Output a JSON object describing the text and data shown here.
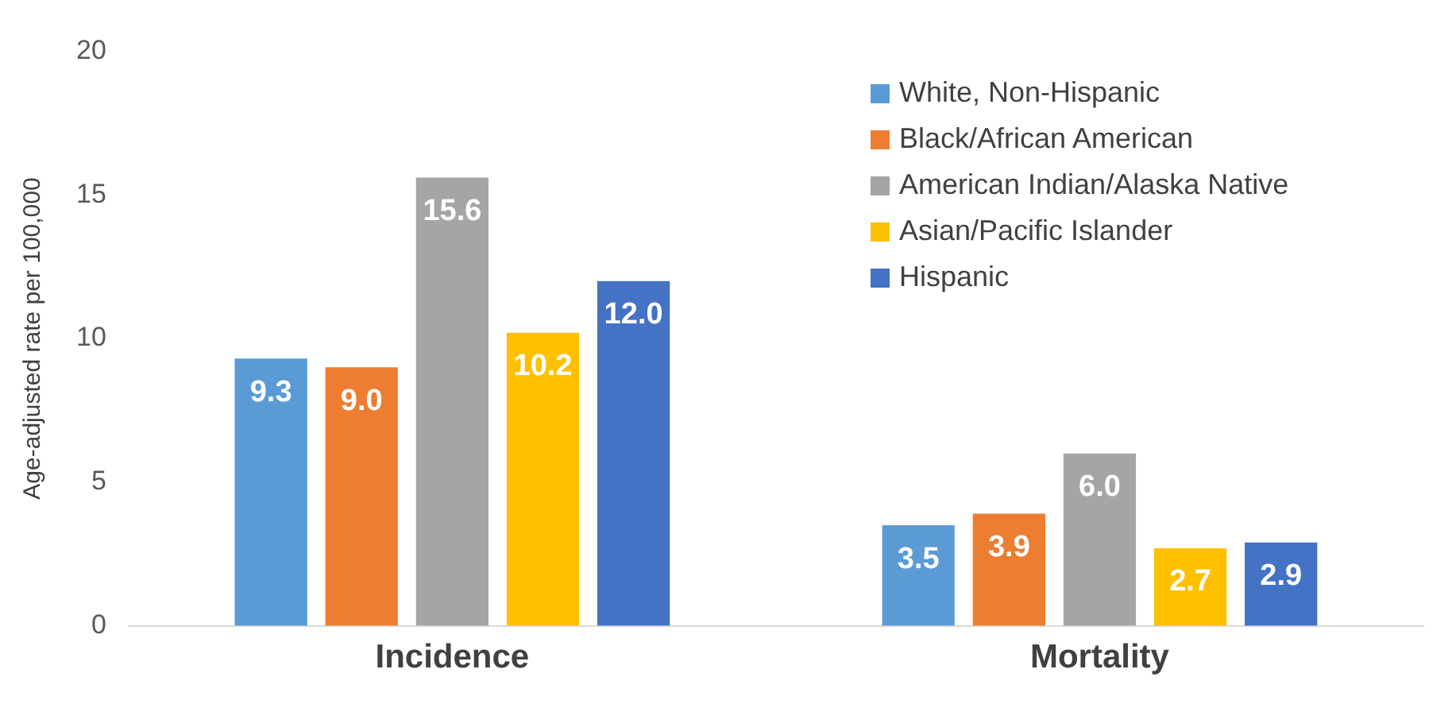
{
  "chart_data": {
    "type": "bar",
    "ylabel": "Age-adjusted rate per 100,000",
    "categories": [
      "Incidence",
      "Mortality"
    ],
    "series": [
      {
        "name": "White, Non-Hispanic",
        "color": "#5b9bd5",
        "values": [
          9.3,
          3.5
        ],
        "value_labels": [
          "9.3",
          "3.5"
        ]
      },
      {
        "name": "Black/African American",
        "color": "#ed7d31",
        "values": [
          9.0,
          3.9
        ],
        "value_labels": [
          "9.0",
          "3.9"
        ]
      },
      {
        "name": "American Indian/Alaska Native",
        "color": "#a5a5a5",
        "values": [
          15.6,
          6.0
        ],
        "value_labels": [
          "15.6",
          "6.0"
        ]
      },
      {
        "name": "Asian/Pacific Islander",
        "color": "#ffc000",
        "values": [
          10.2,
          2.7
        ],
        "value_labels": [
          "10.2",
          "2.7"
        ]
      },
      {
        "name": "Hispanic",
        "color": "#4472c4",
        "values": [
          12.0,
          2.9
        ],
        "value_labels": [
          "12.0",
          "2.9"
        ]
      }
    ],
    "ylim": [
      0,
      20
    ],
    "yticks": [
      0,
      5,
      10,
      15,
      20
    ],
    "grid": false,
    "legend": "top right"
  }
}
